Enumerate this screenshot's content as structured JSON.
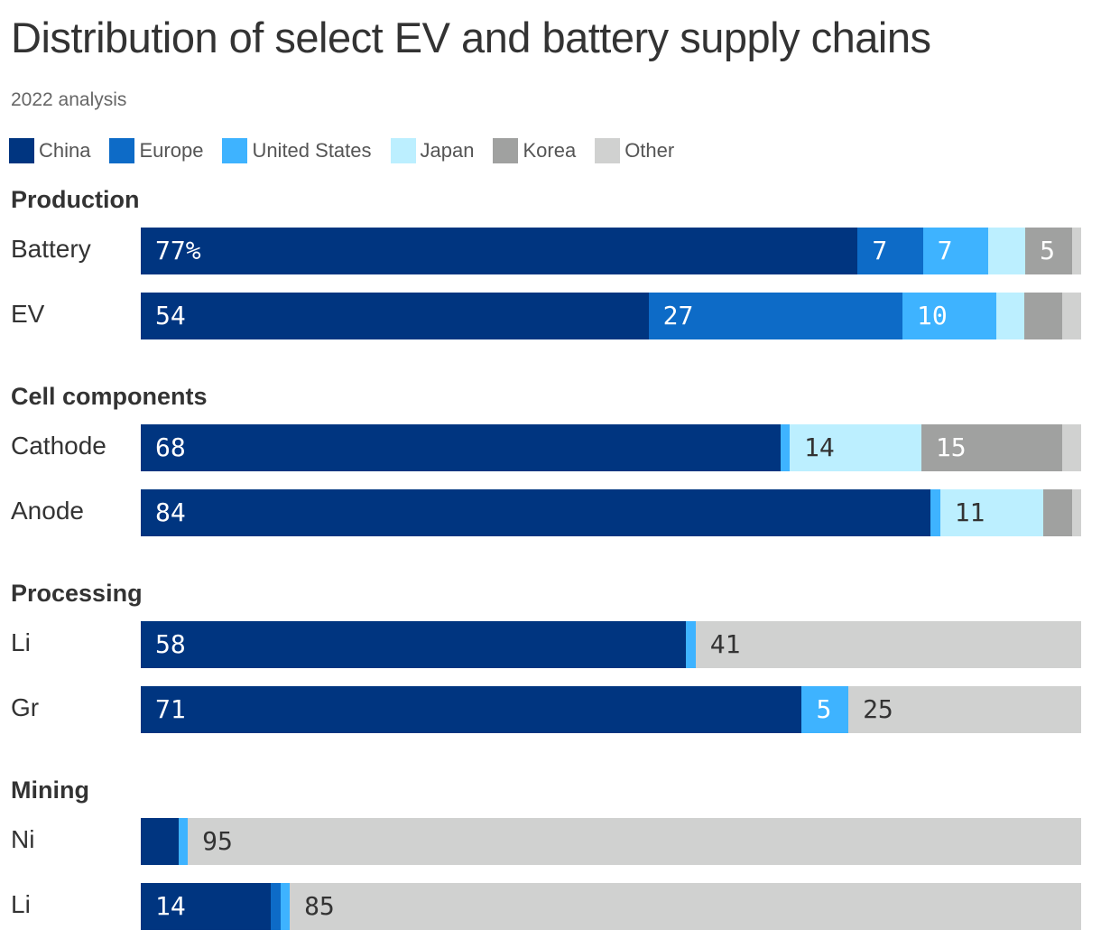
{
  "title": "Distribution of select EV and battery supply chains",
  "subtitle": "2022 analysis",
  "legend": [
    {
      "name": "China",
      "color": "#003580"
    },
    {
      "name": "Europe",
      "color": "#0d6bc7"
    },
    {
      "name": "United States",
      "color": "#3eb3ff"
    },
    {
      "name": "Japan",
      "color": "#bcefff"
    },
    {
      "name": "Korea",
      "color": "#a0a1a0"
    },
    {
      "name": "Other",
      "color": "#d0d1d0"
    }
  ],
  "chart_data": {
    "type": "bar",
    "stacked": true,
    "orientation": "horizontal",
    "unit": "%",
    "series_order": [
      "China",
      "Europe",
      "United States",
      "Japan",
      "Korea",
      "Other"
    ],
    "groups": [
      {
        "name": "Production",
        "rows": [
          {
            "label": "Battery",
            "values": [
              77,
              7,
              7,
              4,
              5,
              1
            ],
            "labels": [
              "77%",
              "7",
              "7",
              "",
              "5",
              ""
            ]
          },
          {
            "label": "EV",
            "values": [
              54,
              27,
              10,
              3,
              4,
              2
            ],
            "labels": [
              "54",
              "27",
              "10",
              "",
              "",
              ""
            ]
          }
        ]
      },
      {
        "name": "Cell components",
        "rows": [
          {
            "label": "Cathode",
            "values": [
              68,
              0,
              1,
              14,
              15,
              2
            ],
            "labels": [
              "68",
              "",
              "",
              "14",
              "15",
              ""
            ]
          },
          {
            "label": "Anode",
            "values": [
              84,
              0,
              1,
              11,
              3,
              1
            ],
            "labels": [
              "84",
              "",
              "",
              "11",
              "",
              ""
            ]
          }
        ]
      },
      {
        "name": "Processing",
        "rows": [
          {
            "label": "Li",
            "values": [
              58,
              0,
              1,
              0,
              0,
              41
            ],
            "labels": [
              "58",
              "",
              "",
              "",
              "",
              "41"
            ]
          },
          {
            "label": "Gr",
            "values": [
              71,
              0,
              5,
              0,
              0,
              25
            ],
            "labels": [
              "71",
              "",
              "5",
              "",
              "",
              "25"
            ]
          }
        ]
      },
      {
        "name": "Mining",
        "rows": [
          {
            "label": "Ni",
            "values": [
              4,
              0,
              1,
              0,
              0,
              95
            ],
            "labels": [
              "",
              "",
              "",
              "",
              "",
              "95"
            ]
          },
          {
            "label": "Li",
            "values": [
              14,
              1,
              1,
              0,
              0,
              85
            ],
            "labels": [
              "14",
              "",
              "",
              "",
              "",
              "85"
            ]
          }
        ]
      }
    ]
  }
}
